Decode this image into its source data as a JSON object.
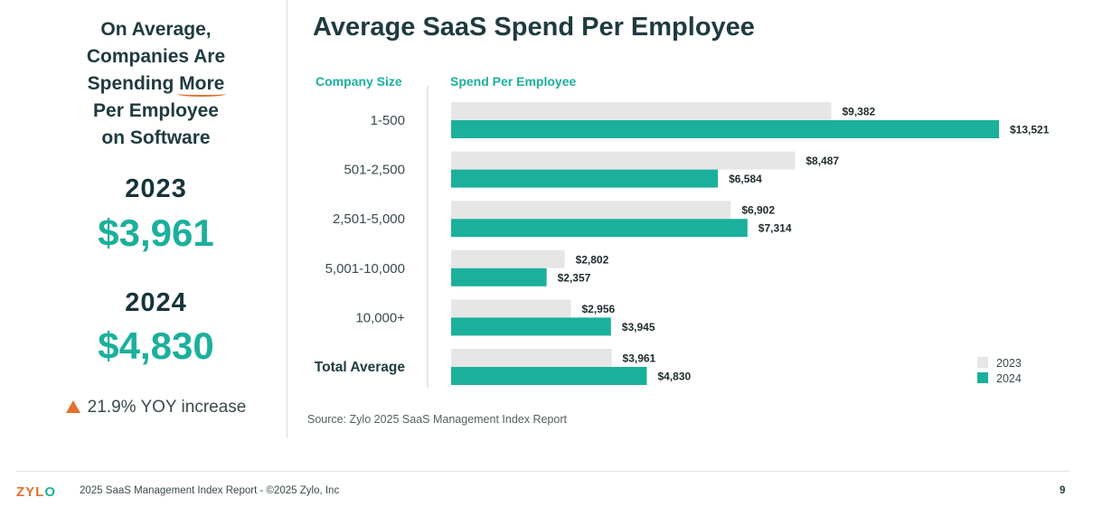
{
  "left_panel": {
    "headline_line1": "On Average,",
    "headline_line2": "Companies Are",
    "headline_line3_prefix": "Spending",
    "headline_line3_emphasis": "More",
    "headline_line4": "Per Employee",
    "headline_line5": "on Software",
    "year_a": "2023",
    "amount_a": "$3,961",
    "year_b": "2024",
    "amount_b": "$4,830",
    "yoy_text": "21.9% YOY increase"
  },
  "colors": {
    "accent_teal": "#1bb09b",
    "accent_orange": "#e2702f",
    "bar_2023": "#e6e6e6",
    "bar_2024": "#1bb09b",
    "dark_text": "#1f3b3f"
  },
  "chart_data": {
    "type": "bar",
    "orientation": "horizontal",
    "title": "Average SaaS Spend Per Employee",
    "category_header": "Company Size",
    "value_header": "Spend Per Employee",
    "categories": [
      "1-500",
      "501-2,500",
      "2,501-5,000",
      "5,001-10,000",
      "10,000+",
      "Total Average"
    ],
    "series": [
      {
        "name": "2023",
        "color": "#e6e6e6",
        "values": [
          9382,
          8487,
          6902,
          2802,
          2956,
          3961
        ],
        "labels": [
          "$9,382",
          "$8,487",
          "$6,902",
          "$2,802",
          "$2,956",
          "$3,961"
        ]
      },
      {
        "name": "2024",
        "color": "#1bb09b",
        "values": [
          13521,
          6584,
          7314,
          2357,
          3945,
          4830
        ],
        "labels": [
          "$13,521",
          "$6,584",
          "$7,314",
          "$2,357",
          "$3,945",
          "$4,830"
        ]
      }
    ],
    "xlim": [
      0,
      13521
    ],
    "grid": false,
    "legend_position": "bottom-right"
  },
  "source": "Source: Zylo 2025 SaaS Management Index Report",
  "footer": {
    "logo_main": "ZYL",
    "logo_end": "O",
    "text": "2025 SaaS Management Index Report - ©2025 Zylo, Inc",
    "page_number": "9"
  }
}
